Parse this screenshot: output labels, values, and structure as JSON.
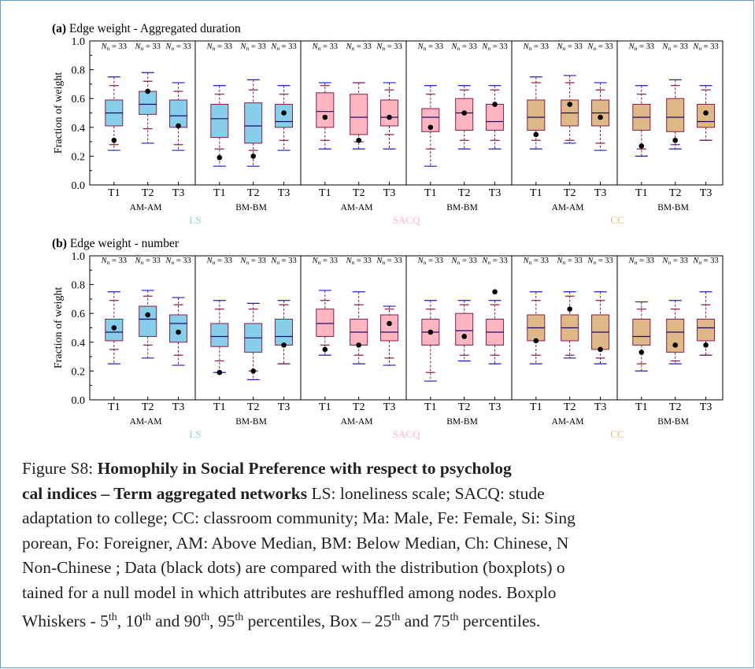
{
  "figure": {
    "panels": [
      {
        "label": "(a)",
        "title": "Edge weight - Aggregated duration"
      },
      {
        "label": "(b)",
        "title": "Edge weight - number"
      }
    ],
    "ylabel": "Fraction of weight",
    "yticks": [
      "0.0",
      "0.2",
      "0.4",
      "0.6",
      "0.8",
      "1.0"
    ],
    "n_label": "N",
    "n_sub": "n",
    "n_value": "= 33",
    "groups": [
      {
        "name": "LS",
        "color": "#87ceeb"
      },
      {
        "name": "SACQ",
        "color": "#ffb6c1"
      },
      {
        "name": "CC",
        "color": "#deb887"
      }
    ],
    "subgroups": [
      "AM-AM",
      "BM-BM"
    ],
    "ticks": [
      "T1",
      "T2",
      "T3"
    ],
    "colors": {
      "box_edge": "#8b1a4a",
      "whisker": "#1a1acc",
      "median": "#1a0a6e",
      "dot": "#000000",
      "frame": "#5a86b0"
    }
  },
  "chart_data": [
    {
      "type": "box",
      "title": "Edge weight - Aggregated duration",
      "ylabel": "Fraction of weight",
      "ylim": [
        0,
        1.0
      ],
      "series": [
        {
          "name": "LS AM-AM",
          "stats": [
            [
              0.24,
              0.28,
              0.41,
              0.5,
              0.59,
              0.69,
              0.75
            ],
            [
              0.29,
              0.39,
              0.49,
              0.56,
              0.65,
              0.72,
              0.78
            ],
            [
              0.24,
              0.28,
              0.4,
              0.48,
              0.59,
              0.65,
              0.71
            ]
          ],
          "data": [
            0.31,
            0.65,
            0.41
          ]
        },
        {
          "name": "LS BM-BM",
          "stats": [
            [
              0.13,
              0.25,
              0.33,
              0.46,
              0.56,
              0.63,
              0.69
            ],
            [
              0.13,
              0.24,
              0.29,
              0.41,
              0.57,
              0.66,
              0.73
            ],
            [
              0.24,
              0.31,
              0.4,
              0.44,
              0.56,
              0.63,
              0.69
            ]
          ],
          "data": [
            0.19,
            0.2,
            0.5
          ]
        },
        {
          "name": "SACQ AM-AM",
          "stats": [
            [
              0.25,
              0.31,
              0.4,
              0.51,
              0.64,
              0.69,
              0.71
            ],
            [
              0.25,
              0.3,
              0.35,
              0.47,
              0.63,
              0.71,
              0.71
            ],
            [
              0.25,
              0.35,
              0.41,
              0.47,
              0.59,
              0.66,
              0.71
            ]
          ],
          "data": [
            0.47,
            0.31,
            0.47
          ]
        },
        {
          "name": "SACQ BM-BM",
          "stats": [
            [
              0.13,
              0.25,
              0.37,
              0.47,
              0.53,
              0.63,
              0.69
            ],
            [
              0.25,
              0.31,
              0.38,
              0.5,
              0.6,
              0.66,
              0.69
            ],
            [
              0.25,
              0.31,
              0.38,
              0.44,
              0.56,
              0.66,
              0.69
            ]
          ],
          "data": [
            0.4,
            0.5,
            0.56
          ]
        },
        {
          "name": "CC AM-AM",
          "stats": [
            [
              0.25,
              0.31,
              0.38,
              0.47,
              0.59,
              0.71,
              0.75
            ],
            [
              0.29,
              0.31,
              0.41,
              0.5,
              0.59,
              0.71,
              0.76
            ],
            [
              0.24,
              0.29,
              0.41,
              0.5,
              0.59,
              0.66,
              0.71
            ]
          ],
          "data": [
            0.35,
            0.56,
            0.47
          ]
        },
        {
          "name": "CC BM-BM",
          "stats": [
            [
              0.2,
              0.25,
              0.38,
              0.47,
              0.56,
              0.63,
              0.69
            ],
            [
              0.25,
              0.28,
              0.37,
              0.47,
              0.6,
              0.69,
              0.73
            ],
            [
              0.31,
              0.31,
              0.4,
              0.44,
              0.56,
              0.66,
              0.69
            ]
          ],
          "data": [
            0.27,
            0.31,
            0.5
          ]
        }
      ]
    },
    {
      "type": "box",
      "title": "Edge weight - number",
      "ylabel": "Fraction of weight",
      "ylim": [
        0,
        1.0
      ],
      "series": [
        {
          "name": "LS AM-AM",
          "stats": [
            [
              0.25,
              0.35,
              0.41,
              0.47,
              0.56,
              0.69,
              0.75
            ],
            [
              0.29,
              0.38,
              0.44,
              0.56,
              0.65,
              0.72,
              0.76
            ],
            [
              0.24,
              0.31,
              0.4,
              0.53,
              0.59,
              0.66,
              0.71
            ]
          ],
          "data": [
            0.5,
            0.59,
            0.47
          ]
        },
        {
          "name": "LS BM-BM",
          "stats": [
            [
              0.19,
              0.27,
              0.37,
              0.44,
              0.53,
              0.63,
              0.69
            ],
            [
              0.14,
              0.2,
              0.33,
              0.43,
              0.53,
              0.63,
              0.67
            ],
            [
              0.25,
              0.25,
              0.38,
              0.44,
              0.56,
              0.66,
              0.69
            ]
          ],
          "data": [
            0.19,
            0.2,
            0.38
          ]
        },
        {
          "name": "SACQ AM-AM",
          "stats": [
            [
              0.31,
              0.38,
              0.44,
              0.53,
              0.63,
              0.69,
              0.76
            ],
            [
              0.25,
              0.31,
              0.38,
              0.47,
              0.56,
              0.66,
              0.75
            ],
            [
              0.24,
              0.29,
              0.41,
              0.47,
              0.59,
              0.63,
              0.65
            ]
          ],
          "data": [
            0.35,
            0.38,
            0.53
          ]
        },
        {
          "name": "SACQ BM-BM",
          "stats": [
            [
              0.13,
              0.19,
              0.38,
              0.47,
              0.56,
              0.63,
              0.69
            ],
            [
              0.27,
              0.31,
              0.38,
              0.48,
              0.6,
              0.66,
              0.69
            ],
            [
              0.25,
              0.31,
              0.38,
              0.47,
              0.56,
              0.66,
              0.69
            ]
          ],
          "data": [
            0.47,
            0.44,
            0.75
          ]
        },
        {
          "name": "CC AM-AM",
          "stats": [
            [
              0.25,
              0.31,
              0.41,
              0.5,
              0.59,
              0.69,
              0.75
            ],
            [
              0.29,
              0.31,
              0.41,
              0.5,
              0.59,
              0.72,
              0.75
            ],
            [
              0.25,
              0.29,
              0.35,
              0.47,
              0.59,
              0.69,
              0.75
            ]
          ],
          "data": [
            0.41,
            0.63,
            0.35
          ]
        },
        {
          "name": "CC BM-BM",
          "stats": [
            [
              0.2,
              0.25,
              0.38,
              0.44,
              0.56,
              0.63,
              0.68
            ],
            [
              0.25,
              0.27,
              0.33,
              0.47,
              0.56,
              0.63,
              0.69
            ],
            [
              0.31,
              0.31,
              0.41,
              0.5,
              0.56,
              0.66,
              0.75
            ]
          ],
          "data": [
            0.33,
            0.38,
            0.38
          ]
        }
      ]
    }
  ],
  "caption": {
    "lines": [
      [
        {
          "t": "Figure S8: ",
          "b": false
        },
        {
          "t": "Homophily in Social Preference with respect to psycholog",
          "b": true
        }
      ],
      [
        {
          "t": "cal indices – Term aggregated networks",
          "b": true
        },
        {
          "t": " LS: loneliness scale; SACQ: stude",
          "b": false
        }
      ],
      [
        {
          "t": "adaptation to college; CC: classroom community; Ma: Male, Fe: Female, Si: Sing",
          "b": false
        }
      ],
      [
        {
          "t": "porean, Fo: Foreigner, AM: Above Median, BM: Below Median, Ch: Chinese, N",
          "b": false
        }
      ],
      [
        {
          "t": "Non-Chinese ; Data (black dots) are compared with the distribution (boxplots) o",
          "b": false
        }
      ],
      [
        {
          "t": "tained for a null model in which attributes are reshuffled among nodes. Boxplo",
          "b": false
        }
      ],
      [
        {
          "t": "Whiskers - 5",
          "b": false
        },
        {
          "t": "th",
          "sup": true
        },
        {
          "t": ", 10",
          "b": false
        },
        {
          "t": "th",
          "sup": true
        },
        {
          "t": " and 90",
          "b": false
        },
        {
          "t": "th",
          "sup": true
        },
        {
          "t": ", 95",
          "b": false
        },
        {
          "t": "th",
          "sup": true
        },
        {
          "t": " percentiles, Box – 25",
          "b": false
        },
        {
          "t": "th",
          "sup": true
        },
        {
          "t": " and 75",
          "b": false
        },
        {
          "t": "th",
          "sup": true
        },
        {
          "t": " percentiles.",
          "b": false
        }
      ]
    ]
  }
}
